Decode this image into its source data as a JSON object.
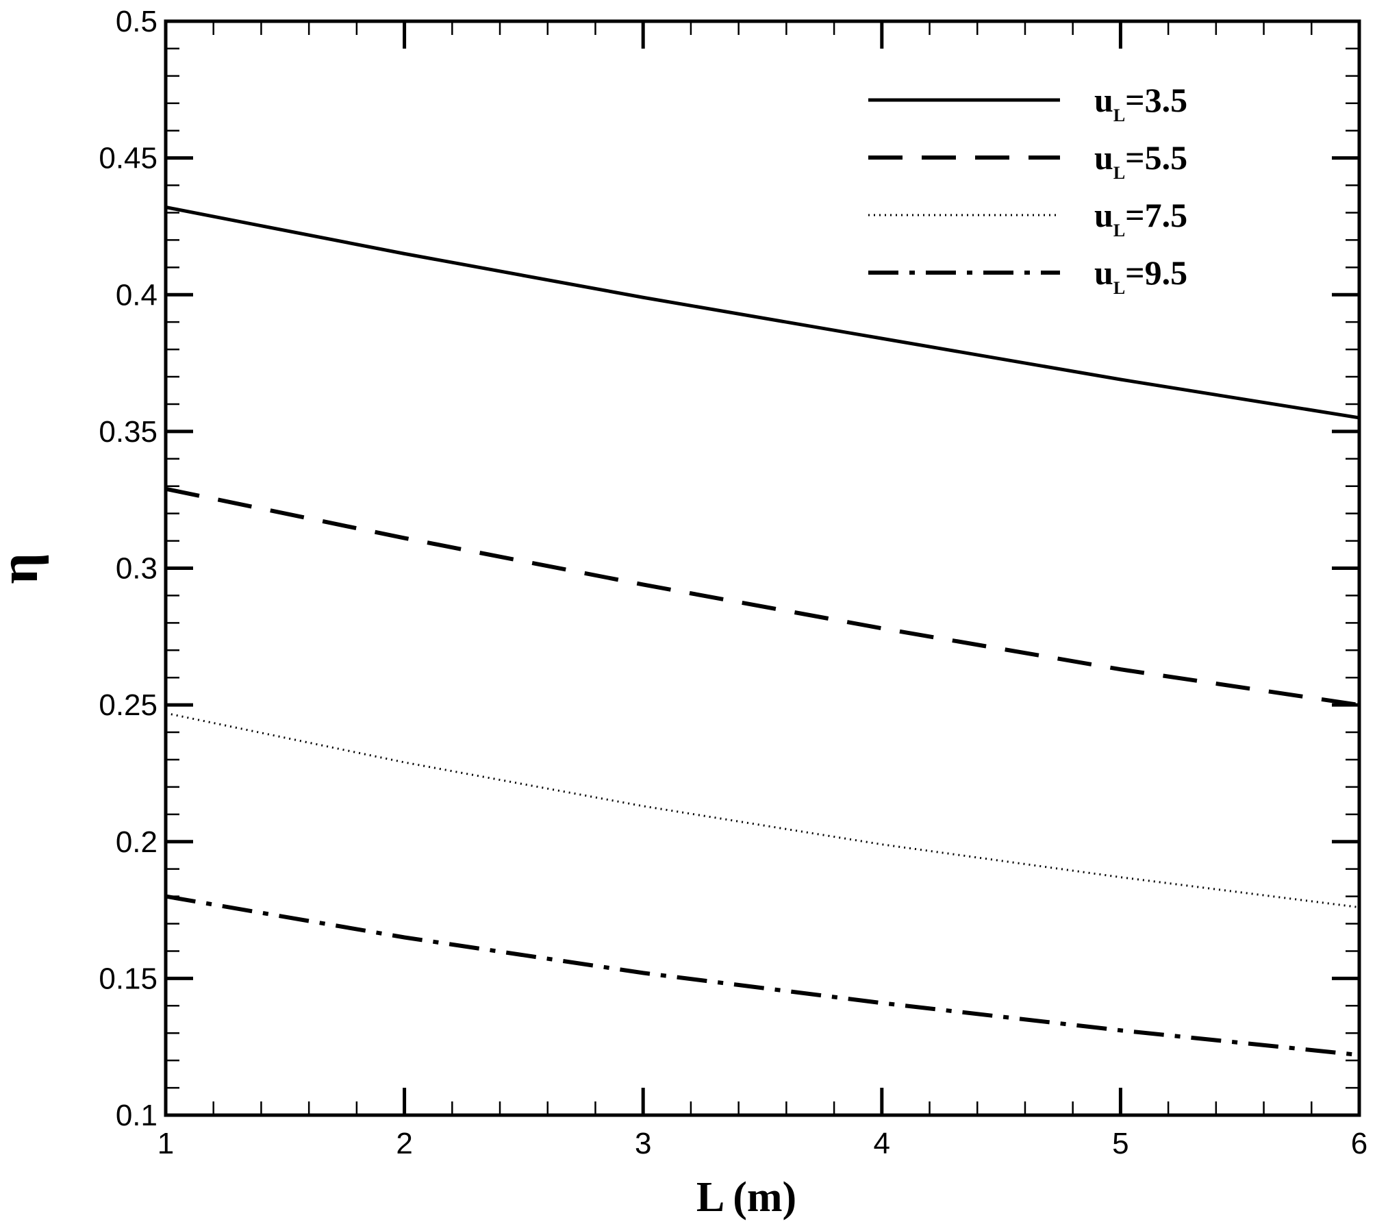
{
  "chart_data": {
    "type": "line",
    "xlabel": "L (m)",
    "ylabel": "η",
    "xlim": [
      1,
      6
    ],
    "ylim": [
      0.1,
      0.5
    ],
    "x_ticks": [
      1,
      2,
      3,
      4,
      5,
      6
    ],
    "y_ticks": [
      0.1,
      0.15,
      0.2,
      0.25,
      0.3,
      0.35,
      0.4,
      0.45,
      0.5
    ],
    "x_tick_labels": [
      "1",
      "2",
      "3",
      "4",
      "5",
      "6"
    ],
    "y_tick_labels": [
      "0.1",
      "0.15",
      "0.2",
      "0.25",
      "0.3",
      "0.35",
      "0.4",
      "0.45",
      "0.5"
    ],
    "legend_position": "top-right",
    "series": [
      {
        "name_main": "u",
        "name_sub": "L",
        "name_value": "=3.5",
        "style": "solid",
        "x": [
          1,
          2,
          3,
          4,
          5,
          6
        ],
        "y": [
          0.432,
          0.415,
          0.399,
          0.384,
          0.369,
          0.355
        ]
      },
      {
        "name_main": "u",
        "name_sub": "L",
        "name_value": "=5.5",
        "style": "dashed",
        "x": [
          1,
          2,
          3,
          4,
          5,
          6
        ],
        "y": [
          0.329,
          0.311,
          0.294,
          0.278,
          0.263,
          0.25
        ]
      },
      {
        "name_main": "u",
        "name_sub": "L",
        "name_value": "=7.5",
        "style": "dotted",
        "x": [
          1,
          2,
          3,
          4,
          5,
          6
        ],
        "y": [
          0.247,
          0.229,
          0.213,
          0.199,
          0.187,
          0.176
        ]
      },
      {
        "name_main": "u",
        "name_sub": "L",
        "name_value": "=9.5",
        "style": "dashdot",
        "x": [
          1,
          2,
          3,
          4,
          5,
          6
        ],
        "y": [
          0.18,
          0.165,
          0.152,
          0.141,
          0.131,
          0.122
        ]
      }
    ]
  }
}
